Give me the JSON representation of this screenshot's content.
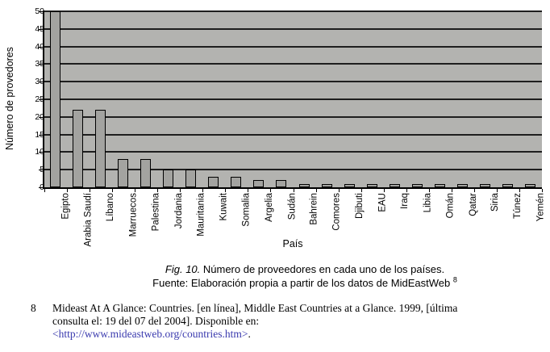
{
  "chart_data": {
    "type": "bar",
    "categories": [
      "Egipto",
      "Arabia Saudí",
      "Líbano",
      "Marruecos",
      "Palestina",
      "Jordania",
      "Mauritania",
      "Kuwait",
      "Somalia",
      "Argelia",
      "Sudán",
      "Bahrein",
      "Comores",
      "Djibuti",
      "EAU",
      "Iraq",
      "Libia",
      "Omán",
      "Qatar",
      "Siria",
      "Túnez",
      "Yemén"
    ],
    "values": [
      50,
      22,
      22,
      8,
      8,
      5,
      5,
      3,
      3,
      2,
      2,
      1,
      1,
      1,
      1,
      1,
      1,
      1,
      1,
      1,
      1,
      1
    ],
    "title": "",
    "xlabel": "País",
    "ylabel": "Número de provedores",
    "ylim": [
      0,
      50
    ],
    "ytick_step": 5,
    "yticks": [
      0,
      5,
      10,
      15,
      20,
      25,
      30,
      35,
      40,
      45,
      50
    ],
    "grid": "horizontal",
    "legend": "none",
    "plot_bg_color": "#b3b3b0",
    "bar_fill_color": "#a3a3a0",
    "bar_border_color": "#000000",
    "gridline_color": "#1e1e1e"
  },
  "caption": {
    "fig_label": "Fig. 10.",
    "fig_text": " Número de proveedores en cada uno de los países.",
    "source_text": "Fuente: Elaboración propia a partir de los datos de MidEastWeb ",
    "source_ref": "8"
  },
  "footnote": {
    "marker": "8",
    "lines": [
      "Mideast At A Glance: Countries. [en línea], Middle East Countries at a Glance. 1999, [última",
      "consulta el: 19 del 07 del 2004]. Disponible en:"
    ],
    "link": "<http://www.mideastweb.org/countries.htm>",
    "suffix": ".",
    "link_color": "#3a3aae"
  }
}
